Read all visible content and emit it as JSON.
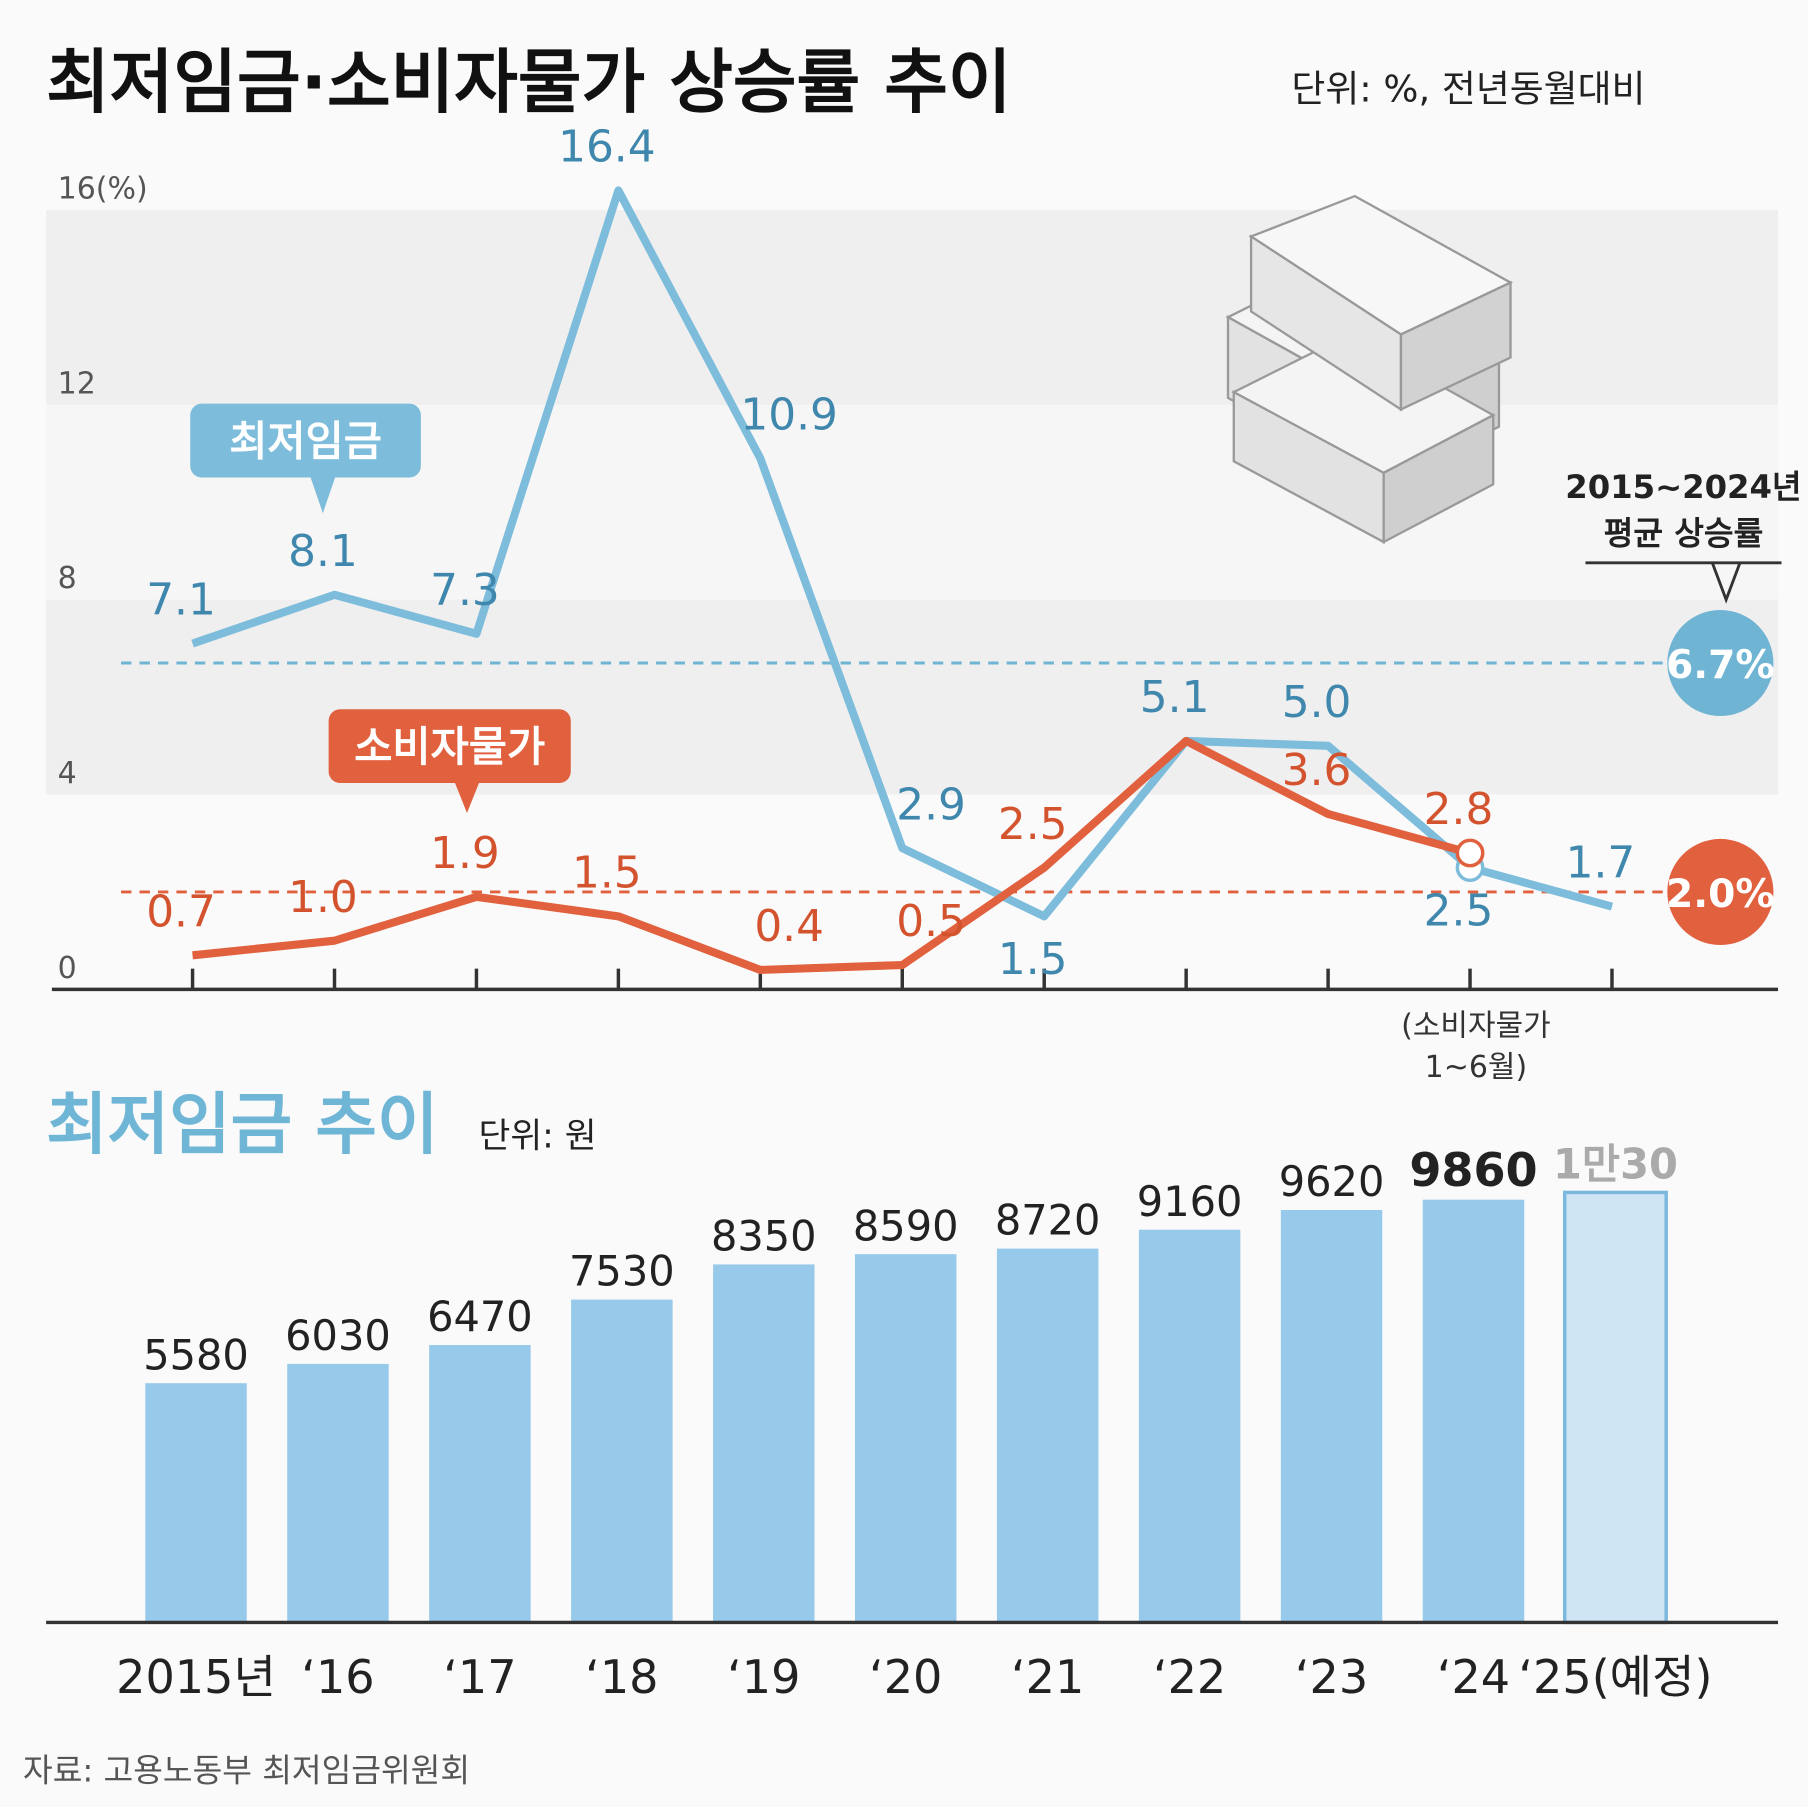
{
  "source": "자료: 고용노동부 최저임금위원회",
  "chart_data": [
    {
      "type": "line",
      "title": "최저임금·소비자물가 상승률 추이",
      "subtitle": "단위: %, 전년동월대비",
      "series": [
        {
          "name": "최저임금",
          "color": "#7dbcdb",
          "label_color": "#3f87ad",
          "values": [
            7.1,
            8.1,
            7.3,
            16.4,
            10.9,
            2.9,
            1.5,
            5.1,
            5.0,
            2.5,
            1.7
          ],
          "value_labels": [
            "7.1",
            "8.1",
            "7.3",
            "16.4",
            "10.9",
            "2.9",
            "1.5",
            "5.1",
            "5.0",
            "2.5",
            "1.7"
          ]
        },
        {
          "name": "소비자물가",
          "color": "#e1603d",
          "label_color": "#d4532f",
          "values": [
            0.7,
            1.0,
            1.9,
            1.5,
            0.4,
            0.5,
            2.5,
            5.1,
            3.6,
            2.8,
            null
          ],
          "value_labels": [
            "0.7",
            "1.0",
            "1.9",
            "1.5",
            "0.4",
            "0.5",
            "2.5",
            null,
            "3.6",
            "2.8",
            null
          ]
        }
      ],
      "ylim": [
        0,
        16
      ],
      "yticks": [
        0,
        4,
        8,
        12,
        {
          "value": 16,
          "label": "16(%)"
        }
      ],
      "reference_lines": [
        {
          "value": 6.7,
          "label": "6.7%",
          "color": "#6fb4d3"
        },
        {
          "value": 2.0,
          "label": "2.0%",
          "color": "#e1603d"
        }
      ],
      "annotation": [
        "2015~2024년",
        "평균 상승률"
      ],
      "note": [
        "(소비자물가",
        "1~6월)"
      ]
    },
    {
      "type": "bar",
      "title": "최저임금 추이",
      "subtitle": "단위: 원",
      "categories": [
        "2015년",
        "‘16",
        "‘17",
        "‘18",
        "‘19",
        "‘20",
        "‘21",
        "‘22",
        "‘23",
        "‘24",
        "‘25(예정)"
      ],
      "values": [
        5580,
        6030,
        6470,
        7530,
        8350,
        8590,
        8720,
        9160,
        9620,
        9860,
        10030
      ],
      "value_labels": [
        "5580",
        "6030",
        "6470",
        "7530",
        "8350",
        "8590",
        "8720",
        "9160",
        "9620",
        "9860",
        "1만30"
      ],
      "colors": [
        "#96c9ea",
        "#96c9ea",
        "#96c9ea",
        "#96c9ea",
        "#96c9ea",
        "#96c9ea",
        "#96c9ea",
        "#96c9ea",
        "#96c9ea",
        "#96c9ea",
        "#cfe5f4"
      ],
      "ylim": [
        0,
        11000
      ]
    }
  ]
}
